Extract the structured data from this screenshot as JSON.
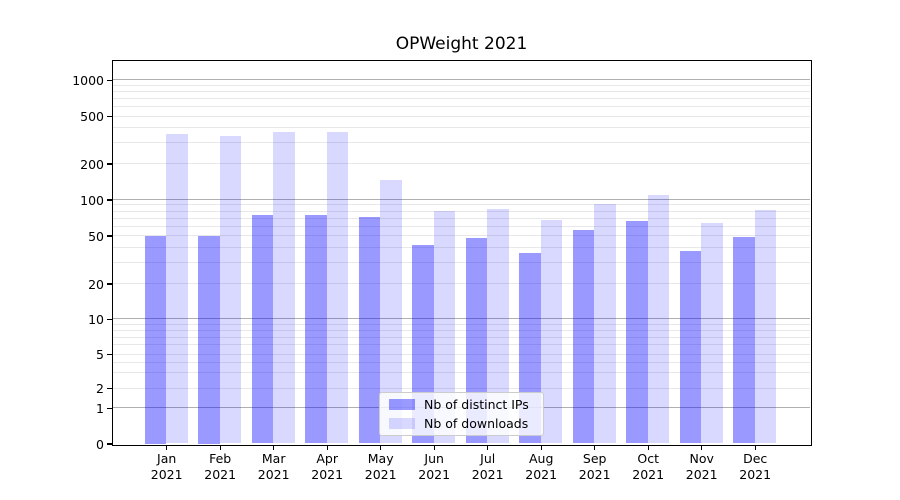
{
  "chart_data": {
    "type": "bar",
    "title": "OPWeight 2021",
    "categories": [
      "Jan",
      "Feb",
      "Mar",
      "Apr",
      "May",
      "Jun",
      "Jul",
      "Aug",
      "Sep",
      "Oct",
      "Nov",
      "Dec"
    ],
    "category_year": "2021",
    "series": [
      {
        "name": "Nb of distinct IPs",
        "color": "rgba(0,0,255,0.4)",
        "values": [
          50,
          50,
          74,
          74,
          72,
          42,
          48,
          36,
          56,
          66,
          37,
          49
        ]
      },
      {
        "name": "Nb of downloads",
        "color": "rgba(0,0,255,0.15)",
        "values": [
          352,
          338,
          366,
          365,
          145,
          80,
          83,
          67,
          92,
          110,
          64,
          82
        ]
      }
    ],
    "xlabel": "",
    "ylabel": "",
    "yscale": "symlog",
    "ylim_bottom": 0,
    "yticks": [
      0,
      1,
      2,
      5,
      10,
      20,
      50,
      100,
      200,
      500,
      1000
    ],
    "grid": true,
    "legend_position": "lower center"
  },
  "colors": {
    "grid_major": "#b0b0b0",
    "grid_minor": "#e8e8e8",
    "axis": "#000000",
    "background": "#ffffff"
  }
}
